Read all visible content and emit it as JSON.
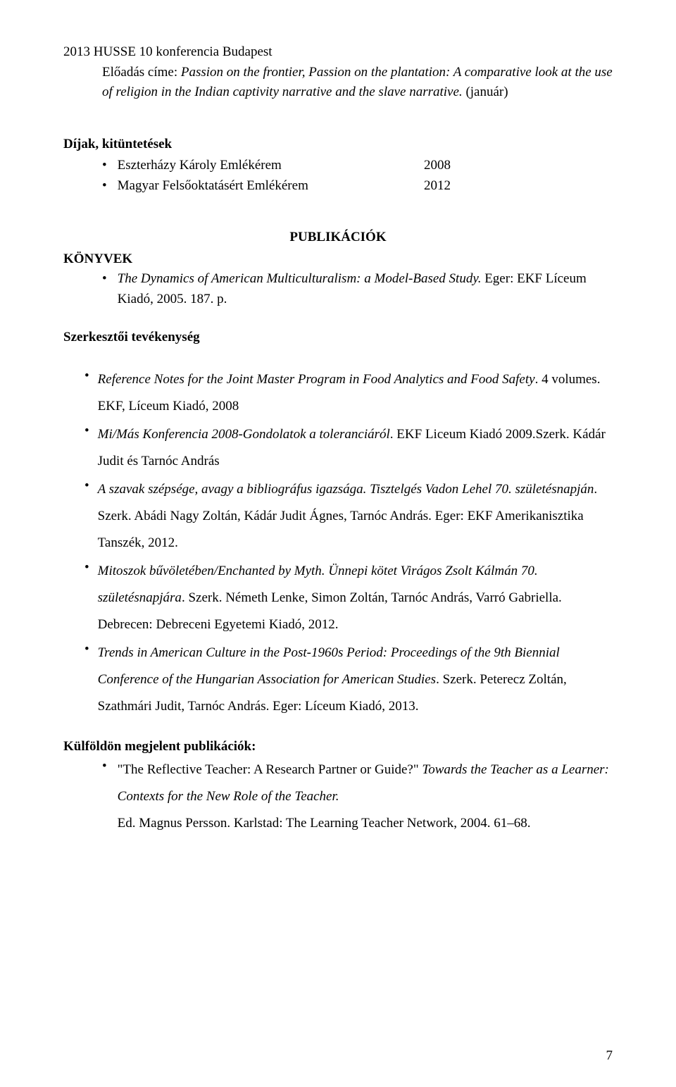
{
  "header": {
    "line1": "2013 HUSSE 10 konferencia Budapest",
    "line2a": "Előadás címe: ",
    "line2b": "Passion on the frontier, Passion on the plantation: A comparative look at the use of religion in the Indian captivity narrative and the slave narrative.",
    "line3": " (január)"
  },
  "awards": {
    "heading": "Díjak, kitüntetések",
    "items": [
      {
        "label": "Eszterházy Károly Emlékérem",
        "year": "2008"
      },
      {
        "label": "Magyar Felsőoktatásért Emlékérem",
        "year": "2012"
      }
    ]
  },
  "publications_heading": "PUBLIKÁCIÓK",
  "books": {
    "heading": "KÖNYVEK",
    "item_italic": "The Dynamics of American Multiculturalism: a Model-Based Study.",
    "item_rest": " Eger: EKF Líceum Kiadó, 2005. 187. p."
  },
  "editorial_heading": "Szerkesztői tevékenység",
  "refs": [
    {
      "parts": [
        {
          "text": "Reference Notes for the Joint Master Program in Food Analytics and Food Safety",
          "italic": true
        },
        {
          "text": ". 4 volumes. EKF, Líceum Kiadó, 2008",
          "italic": false
        }
      ]
    },
    {
      "parts": [
        {
          "text": "Mi/Más Konferencia 2008-Gondolatok a toleranciáról",
          "italic": true
        },
        {
          "text": ". EKF Liceum Kiadó 2009.Szerk. Kádár Judit és Tarnóc András",
          "italic": false
        }
      ]
    },
    {
      "parts": [
        {
          "text": "A szavak szépsége, avagy a bibliográfus igazsága. Tisztelgés Vadon Lehel 70. születésnapján",
          "italic": true
        },
        {
          "text": ". Szerk. Abádi Nagy Zoltán, Kádár Judit Ágnes, Tarnóc András. Eger: EKF Amerikanisztika Tanszék, 2012.",
          "italic": false
        }
      ]
    },
    {
      "parts": [
        {
          "text": "Mitoszok bűvöletében/Enchanted by Myth. Ünnepi kötet Virágos Zsolt Kálmán 70. születésnapjára",
          "italic": true
        },
        {
          "text": ". Szerk. Németh Lenke, Simon Zoltán, Tarnóc András, Varró Gabriella. Debrecen: Debreceni Egyetemi Kiadó, 2012.",
          "italic": false
        }
      ]
    },
    {
      "parts": [
        {
          "text": "Trends in American Culture in the Post-1960s Period: Proceedings of the 9th Biennial Conference of the Hungarian Association for American Studies",
          "italic": true
        },
        {
          "text": ". Szerk. Peterecz Zoltán, Szathmári Judit, Tarnóc András. Eger: Líceum Kiadó, 2013.",
          "italic": false
        }
      ]
    }
  ],
  "foreign": {
    "heading": "Külföldön megjelent publikációk:",
    "parts": [
      {
        "text": "\"The Reflective Teacher: A Research Partner or Guide?\" ",
        "italic": false
      },
      {
        "text": "Towards the Teacher as a Learner: Contexts for the New Role of the Teacher.",
        "italic": true
      }
    ],
    "line2": "Ed. Magnus Persson. Karlstad: The Learning Teacher Network, 2004. 61–68."
  },
  "page_number": "7"
}
